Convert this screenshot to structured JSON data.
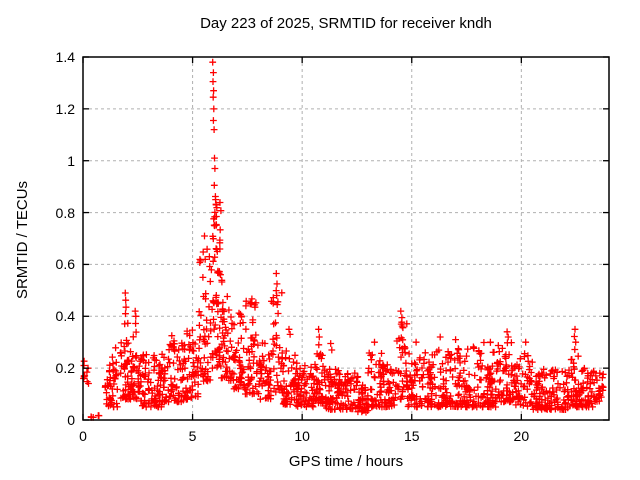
{
  "chart_data": {
    "type": "scatter",
    "title": "Day 223 of 2025, SRMTID for receiver kndh",
    "xlabel": "GPS time / hours",
    "ylabel": "SRMTID / TECUs",
    "xlim": [
      0,
      24
    ],
    "ylim": [
      0,
      1.4
    ],
    "xticks": [
      0,
      5,
      10,
      15,
      20
    ],
    "xtick_labels": [
      "0",
      "5",
      "10",
      "15",
      "20"
    ],
    "yticks": [
      0,
      0.2,
      0.4,
      0.6,
      0.8,
      1.0,
      1.2,
      1.4
    ],
    "ytick_labels": [
      "0",
      "0.2",
      "0.4",
      "0.6",
      "0.8",
      "1",
      "1.2",
      "1.4"
    ],
    "grid": true,
    "grid_style": "dashed",
    "legend": "none",
    "marker": "plus",
    "marker_color": "#ff0000",
    "grid_color": "#b0b0b0",
    "border_color": "#000000",
    "background_color": "#ffffff",
    "peak_value": {
      "x": 5.92,
      "y": 1.38
    },
    "seed": 20250223,
    "point_bins_format": [
      "x_start_hours",
      "x_end_hours",
      "count",
      "y_low_TECUs",
      "y_high_TECUs",
      "low_bias_exponent"
    ],
    "point_bins": [
      [
        0.02,
        0.1,
        6,
        0.12,
        0.24,
        1.0
      ],
      [
        0.15,
        0.3,
        4,
        0.14,
        0.2,
        1.0
      ],
      [
        0.35,
        0.75,
        5,
        0.01,
        0.018,
        1.0
      ],
      [
        1.0,
        1.6,
        45,
        0.05,
        0.28,
        1.8
      ],
      [
        1.7,
        2.1,
        40,
        0.08,
        0.38,
        1.8
      ],
      [
        2.1,
        2.6,
        45,
        0.08,
        0.35,
        1.8
      ],
      [
        2.6,
        3.6,
        80,
        0.05,
        0.27,
        1.8
      ],
      [
        3.6,
        4.6,
        80,
        0.07,
        0.3,
        1.8
      ],
      [
        4.6,
        5.3,
        55,
        0.08,
        0.35,
        1.8
      ],
      [
        5.3,
        5.8,
        45,
        0.15,
        0.72,
        1.5
      ],
      [
        5.8,
        6.3,
        70,
        0.2,
        0.85,
        1.3
      ],
      [
        6.3,
        6.8,
        45,
        0.15,
        0.55,
        1.7
      ],
      [
        6.8,
        7.4,
        50,
        0.12,
        0.42,
        1.8
      ],
      [
        7.4,
        8.0,
        50,
        0.1,
        0.47,
        1.8
      ],
      [
        8.0,
        8.6,
        45,
        0.08,
        0.3,
        1.8
      ],
      [
        8.6,
        9.1,
        35,
        0.1,
        0.5,
        1.6
      ],
      [
        9.1,
        9.7,
        45,
        0.06,
        0.3,
        1.8
      ],
      [
        9.7,
        10.6,
        70,
        0.05,
        0.22,
        1.6
      ],
      [
        10.6,
        11.0,
        35,
        0.06,
        0.28,
        1.8
      ],
      [
        11.0,
        12.4,
        110,
        0.04,
        0.2,
        1.5
      ],
      [
        12.4,
        13.0,
        45,
        0.03,
        0.17,
        1.5
      ],
      [
        13.0,
        13.7,
        50,
        0.05,
        0.26,
        1.7
      ],
      [
        13.7,
        14.3,
        45,
        0.05,
        0.22,
        1.6
      ],
      [
        14.3,
        14.8,
        40,
        0.08,
        0.38,
        1.6
      ],
      [
        14.8,
        16.0,
        85,
        0.05,
        0.26,
        1.7
      ],
      [
        16.0,
        17.5,
        110,
        0.05,
        0.28,
        1.7
      ],
      [
        17.5,
        19.0,
        110,
        0.05,
        0.3,
        1.8
      ],
      [
        19.0,
        19.6,
        45,
        0.07,
        0.3,
        1.8
      ],
      [
        19.6,
        20.5,
        60,
        0.05,
        0.26,
        1.8
      ],
      [
        20.5,
        22.2,
        120,
        0.04,
        0.2,
        1.5
      ],
      [
        22.2,
        22.6,
        30,
        0.05,
        0.25,
        1.7
      ],
      [
        22.6,
        23.3,
        50,
        0.05,
        0.2,
        1.6
      ],
      [
        23.3,
        23.75,
        28,
        0.07,
        0.19,
        1.5
      ]
    ],
    "notable_points": [
      [
        5.92,
        1.38
      ],
      [
        5.95,
        1.34
      ],
      [
        5.93,
        1.305
      ],
      [
        5.96,
        1.27
      ],
      [
        5.94,
        1.245
      ],
      [
        5.97,
        1.2
      ],
      [
        5.95,
        1.155
      ],
      [
        5.98,
        1.12
      ],
      [
        6.0,
        1.01
      ],
      [
        6.02,
        0.97
      ],
      [
        5.99,
        0.905
      ],
      [
        6.04,
        0.862
      ],
      [
        6.07,
        0.832
      ],
      [
        1.93,
        0.49
      ],
      [
        1.95,
        0.462
      ],
      [
        1.96,
        0.435
      ],
      [
        1.94,
        0.41
      ],
      [
        2.38,
        0.42
      ],
      [
        2.41,
        0.4
      ],
      [
        2.4,
        0.372
      ],
      [
        4.05,
        0.325
      ],
      [
        4.15,
        0.305
      ],
      [
        8.82,
        0.565
      ],
      [
        8.85,
        0.525
      ],
      [
        8.84,
        0.48
      ],
      [
        8.86,
        0.445
      ],
      [
        9.4,
        0.35
      ],
      [
        9.45,
        0.33
      ],
      [
        10.75,
        0.35
      ],
      [
        10.78,
        0.32
      ],
      [
        10.76,
        0.29
      ],
      [
        11.3,
        0.295
      ],
      [
        11.35,
        0.27
      ],
      [
        13.3,
        0.3
      ],
      [
        14.5,
        0.42
      ],
      [
        14.55,
        0.395
      ],
      [
        14.52,
        0.37
      ],
      [
        15.2,
        0.3
      ],
      [
        16.3,
        0.32
      ],
      [
        17.0,
        0.31
      ],
      [
        19.35,
        0.34
      ],
      [
        19.4,
        0.32
      ],
      [
        20.2,
        0.3
      ],
      [
        22.45,
        0.35
      ],
      [
        22.42,
        0.322
      ],
      [
        22.48,
        0.3
      ],
      [
        22.44,
        0.272
      ]
    ]
  }
}
